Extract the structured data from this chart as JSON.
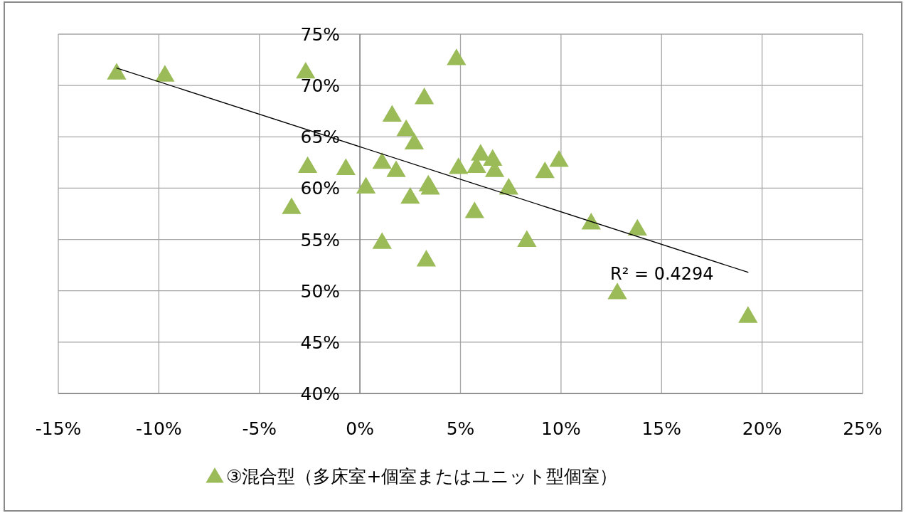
{
  "chart_data": {
    "type": "scatter",
    "xlim": [
      -15,
      25
    ],
    "ylim": [
      40,
      75
    ],
    "xticks": [
      {
        "value": -15,
        "label": "-15%"
      },
      {
        "value": -10,
        "label": "-10%"
      },
      {
        "value": -5,
        "label": "-5%"
      },
      {
        "value": 0,
        "label": "0%"
      },
      {
        "value": 5,
        "label": "5%"
      },
      {
        "value": 10,
        "label": "10%"
      },
      {
        "value": 15,
        "label": "15%"
      },
      {
        "value": 20,
        "label": "20%"
      },
      {
        "value": 25,
        "label": "25%"
      }
    ],
    "yticks": [
      {
        "value": 40,
        "label": "40%"
      },
      {
        "value": 45,
        "label": "45%"
      },
      {
        "value": 50,
        "label": "50%"
      },
      {
        "value": 55,
        "label": "55%"
      },
      {
        "value": 60,
        "label": "60%"
      },
      {
        "value": 65,
        "label": "65%"
      },
      {
        "value": 70,
        "label": "70%"
      },
      {
        "value": 75,
        "label": "75%"
      }
    ],
    "grid": true,
    "legend": "bottom",
    "marker": "triangle",
    "annotations": [
      "R² = 0.4294"
    ],
    "series": [
      {
        "name": "③混合型（多床室+個室またはユニット型個室）",
        "color": "#9bbb59",
        "x": [
          -12.1,
          -9.7,
          -2.7,
          4.8,
          3.2,
          1.6,
          2.3,
          2.7,
          -2.6,
          -0.7,
          1.1,
          1.8,
          0.3,
          -3.4,
          2.5,
          3.4,
          3.5,
          4.9,
          6.0,
          5.8,
          6.6,
          6.7,
          7.4,
          5.7,
          1.1,
          3.3,
          8.3,
          9.2,
          9.9,
          11.5,
          13.8,
          12.8,
          19.3
        ],
        "values": [
          71.3,
          71.1,
          71.4,
          72.7,
          68.9,
          67.2,
          65.8,
          64.5,
          62.2,
          62.0,
          62.6,
          61.8,
          60.2,
          58.2,
          59.2,
          60.4,
          60.1,
          62.1,
          63.4,
          62.2,
          62.9,
          61.8,
          60.1,
          57.8,
          54.8,
          53.1,
          55.0,
          61.7,
          62.8,
          56.7,
          56.1,
          49.9,
          47.6
        ]
      },
      {
        "type": "line",
        "color": "#000000",
        "marker": "none",
        "x": [
          -12.1,
          19.3
        ],
        "values": [
          71.7,
          51.8
        ]
      }
    ]
  }
}
